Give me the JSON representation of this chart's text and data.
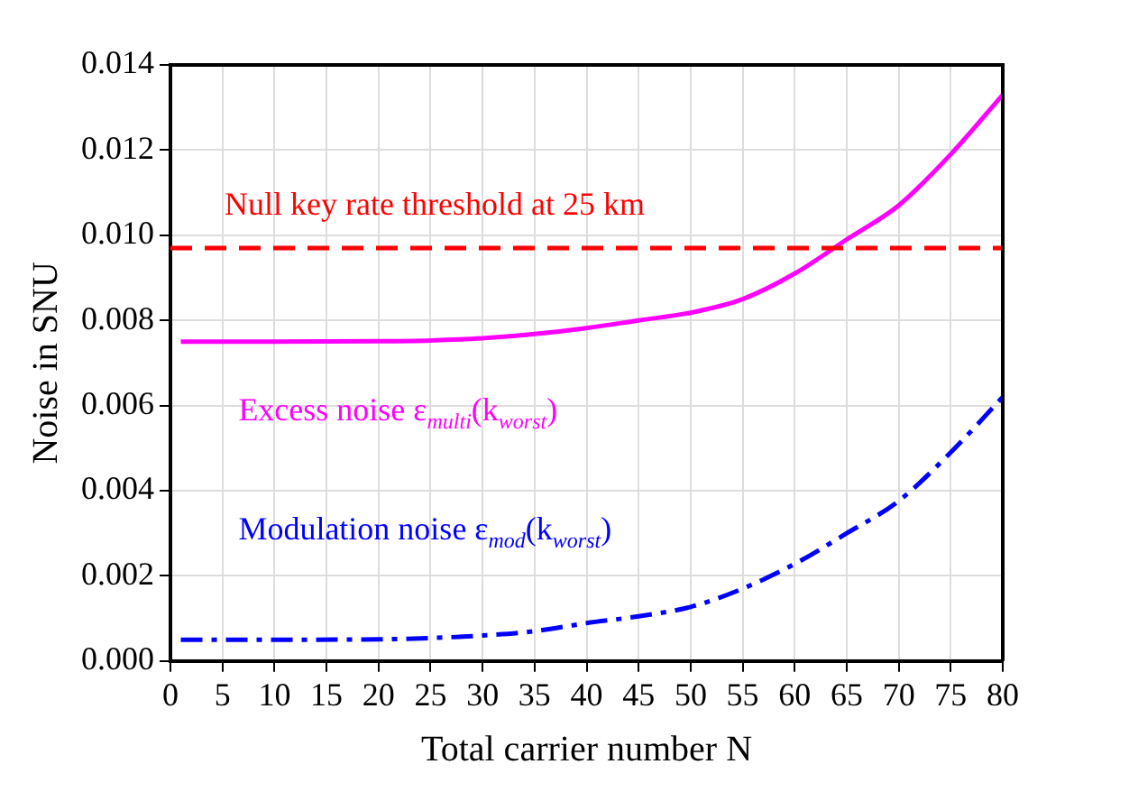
{
  "chart_data": {
    "type": "line",
    "xlabel": "Total carrier number N",
    "ylabel": "Noise in SNU",
    "xlim": [
      0,
      80
    ],
    "xticks": [
      0,
      5,
      10,
      15,
      20,
      25,
      30,
      35,
      40,
      45,
      50,
      55,
      60,
      65,
      70,
      75,
      80
    ],
    "ylim": [
      0,
      0.014
    ],
    "yticks": [
      {
        "value": 0,
        "label": "0.000"
      },
      {
        "value": 0.002,
        "label": "0.002"
      },
      {
        "value": 0.004,
        "label": "0.004"
      },
      {
        "value": 0.006,
        "label": "0.006"
      },
      {
        "value": 0.008,
        "label": "0.008"
      },
      {
        "value": 0.01,
        "label": "0.010"
      },
      {
        "value": 0.012,
        "label": "0.012"
      },
      {
        "value": 0.014,
        "label": "0.014"
      }
    ],
    "grid": true,
    "legend": false,
    "marker": "none",
    "ref_lines": [
      {
        "axis": "y",
        "value": 0.0097,
        "label": "Null key rate threshold at 25 km",
        "color": "#ff0000",
        "line_style": "dashed"
      }
    ],
    "series": [
      {
        "name": "Excess noise ε$_{multi}$(k$_{worst}$)",
        "color": "#ff00ff",
        "line_style": "solid",
        "x": [
          1,
          10,
          20,
          25,
          30,
          35,
          40,
          45,
          50,
          55,
          60,
          65,
          70,
          75,
          80
        ],
        "values": [
          0.0075,
          0.0075,
          0.00751,
          0.00753,
          0.00758,
          0.00768,
          0.00782,
          0.008,
          0.00818,
          0.0085,
          0.0091,
          0.0099,
          0.0107,
          0.0119,
          0.0133
        ]
      },
      {
        "name": "Modulation noise ε$_{mod}$(k$_{worst}$)",
        "color": "#0000ff",
        "line_style": "dashdot",
        "x": [
          1,
          10,
          20,
          25,
          30,
          35,
          40,
          45,
          50,
          55,
          60,
          65,
          70,
          75,
          80
        ],
        "values": [
          0.0005,
          0.0005,
          0.00051,
          0.00054,
          0.0006,
          0.0007,
          0.00089,
          0.00105,
          0.00127,
          0.0017,
          0.00228,
          0.003,
          0.00376,
          0.0049,
          0.0062
        ]
      }
    ]
  }
}
